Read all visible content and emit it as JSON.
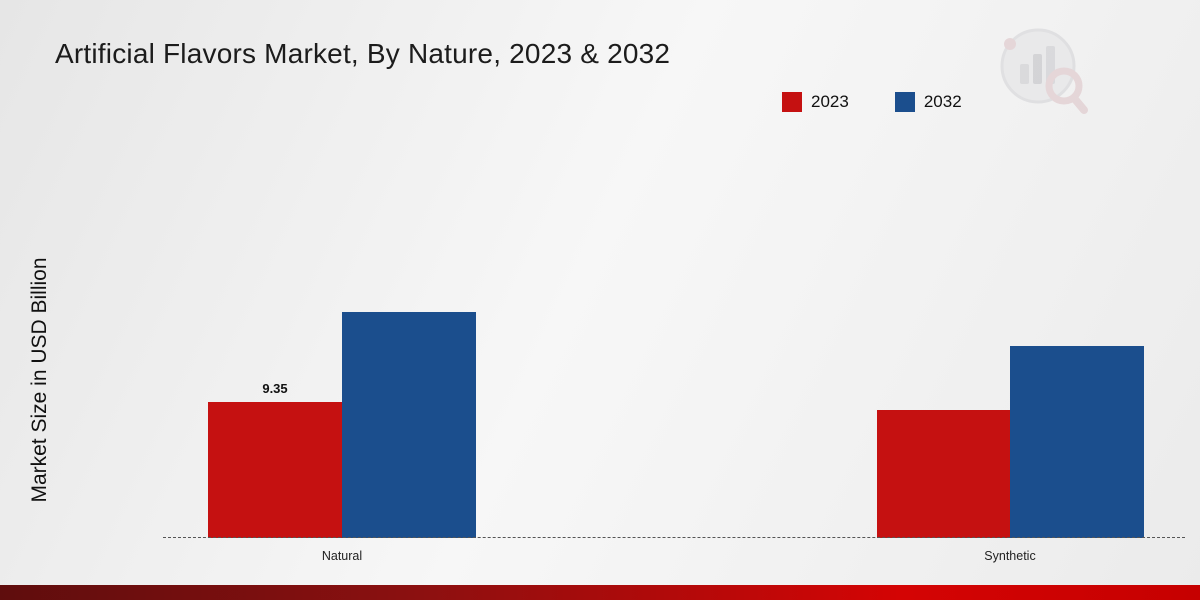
{
  "title": "Artificial Flavors Market, By Nature, 2023 & 2032",
  "y_axis_label": "Market Size in USD Billion",
  "legend": [
    {
      "label": "2023",
      "color": "#c51111"
    },
    {
      "label": "2032",
      "color": "#1b4e8d"
    }
  ],
  "chart_data": {
    "type": "bar",
    "categories": [
      "Natural",
      "Synthetic"
    ],
    "series": [
      {
        "name": "2023",
        "color": "#c51111",
        "values": [
          9.35,
          8.8
        ]
      },
      {
        "name": "2032",
        "color": "#1b4e8d",
        "values": [
          15.5,
          13.2
        ]
      }
    ],
    "title": "Artificial Flavors Market, By Nature, 2023 & 2032",
    "xlabel": "",
    "ylabel": "Market Size in USD Billion",
    "ylim": [
      0,
      16
    ],
    "grid": false,
    "legend_position": "top-right",
    "value_label": {
      "text": "9.35",
      "series": 0,
      "category": 0
    }
  }
}
